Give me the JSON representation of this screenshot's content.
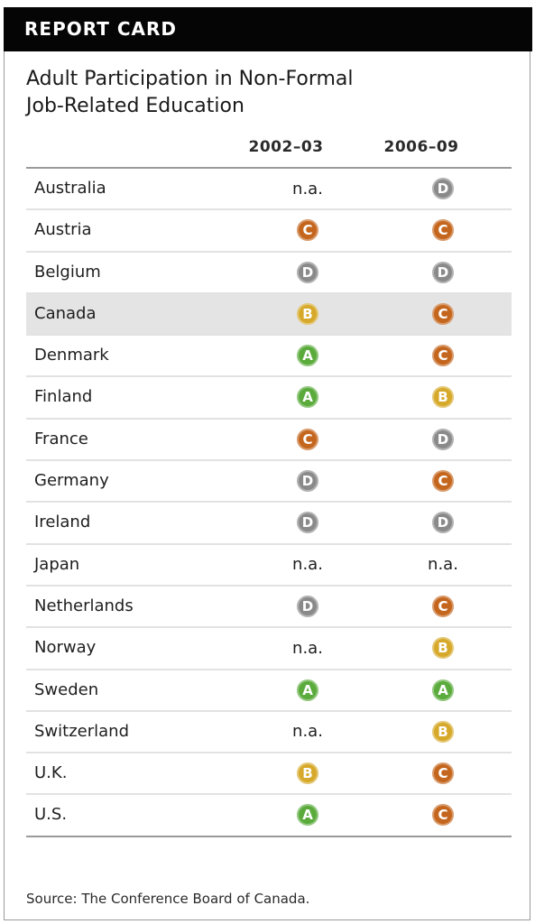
{
  "banner": "REPORT CARD",
  "title_lines": [
    "Adult Participation in Non-Formal",
    "Job-Related Education"
  ],
  "source": "Source: The Conference Board of Canada.",
  "grade_colors": {
    "A": "#5aab3c",
    "B": "#d6a92a",
    "C": "#c4661e",
    "D": "#8a8a8a"
  },
  "chart_data": {
    "type": "table",
    "title": "Adult Participation in Non-Formal Job-Related Education",
    "columns": [
      "2002–03",
      "2006–09"
    ],
    "highlight_row": "Canada",
    "rows": [
      {
        "country": "Australia",
        "grades": [
          "n.a.",
          "D"
        ]
      },
      {
        "country": "Austria",
        "grades": [
          "C",
          "C"
        ]
      },
      {
        "country": "Belgium",
        "grades": [
          "D",
          "D"
        ]
      },
      {
        "country": "Canada",
        "grades": [
          "B",
          "C"
        ]
      },
      {
        "country": "Denmark",
        "grades": [
          "A",
          "C"
        ]
      },
      {
        "country": "Finland",
        "grades": [
          "A",
          "B"
        ]
      },
      {
        "country": "France",
        "grades": [
          "C",
          "D"
        ]
      },
      {
        "country": "Germany",
        "grades": [
          "D",
          "C"
        ]
      },
      {
        "country": "Ireland",
        "grades": [
          "D",
          "D"
        ]
      },
      {
        "country": "Japan",
        "grades": [
          "n.a.",
          "n.a."
        ]
      },
      {
        "country": "Netherlands",
        "grades": [
          "D",
          "C"
        ]
      },
      {
        "country": "Norway",
        "grades": [
          "n.a.",
          "B"
        ]
      },
      {
        "country": "Sweden",
        "grades": [
          "A",
          "A"
        ]
      },
      {
        "country": "Switzerland",
        "grades": [
          "n.a.",
          "B"
        ]
      },
      {
        "country": "U.K.",
        "grades": [
          "B",
          "C"
        ]
      },
      {
        "country": "U.S.",
        "grades": [
          "A",
          "C"
        ]
      }
    ]
  }
}
